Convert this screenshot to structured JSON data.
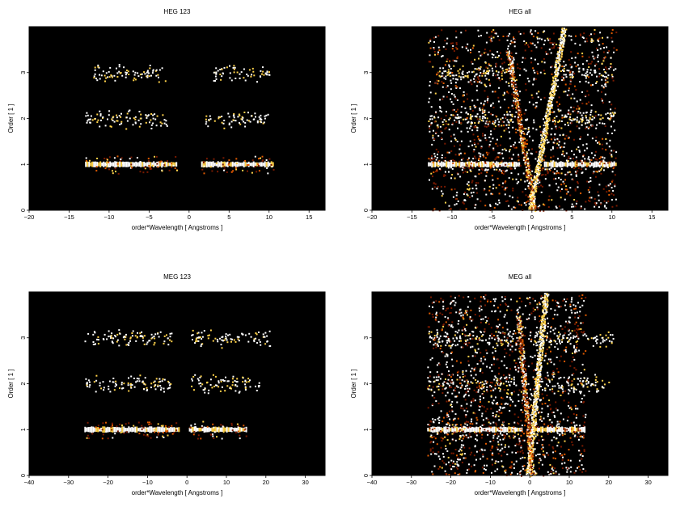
{
  "figure": {
    "background": "#ffffff",
    "plot_background": "#000000"
  },
  "chart_data": [
    {
      "type": "heatmap",
      "title": "HEG 123",
      "xlabel": "order*Wavelength [ Angstroms ]",
      "ylabel": "Order [ 1 ]",
      "xlim": [
        -20,
        17
      ],
      "ylim": [
        0,
        4
      ],
      "xticks": [
        -20,
        -15,
        -10,
        -5,
        0,
        5,
        10,
        15
      ],
      "yticks": [
        0,
        1,
        2,
        3
      ],
      "grid": false,
      "colormap": [
        "#000000",
        "#7a1a00",
        "#e05a00",
        "#ffd24a",
        "#ffffff"
      ],
      "bands": [
        {
          "order": 1,
          "x_ranges": [
            [
              -13,
              -1.5
            ],
            [
              1.5,
              10.5
            ]
          ],
          "intensity": "bright"
        },
        {
          "order": 2,
          "x_ranges": [
            [
              -13,
              -2.5
            ],
            [
              2,
              10
            ]
          ],
          "intensity": "sparse"
        },
        {
          "order": 3,
          "x_ranges": [
            [
              -12,
              -3
            ],
            [
              3,
              10
            ]
          ],
          "intensity": "sparse"
        }
      ],
      "streaks": []
    },
    {
      "type": "heatmap",
      "title": "HEG all",
      "xlabel": "order*Wavelength [ Angstroms ]",
      "ylabel": "Order [ 1 ]",
      "xlim": [
        -20,
        17
      ],
      "ylim": [
        0,
        4
      ],
      "xticks": [
        -20,
        -15,
        -10,
        -5,
        0,
        5,
        10,
        15
      ],
      "yticks": [
        0,
        1,
        2,
        3
      ],
      "grid": false,
      "colormap": [
        "#000000",
        "#7a1a00",
        "#e05a00",
        "#ffd24a",
        "#ffffff"
      ],
      "bands": [
        {
          "order": 1,
          "x_ranges": [
            [
              -13,
              -1.5
            ],
            [
              1.5,
              10.5
            ]
          ],
          "intensity": "bright"
        },
        {
          "order": 2,
          "x_ranges": [
            [
              -13,
              -2.5
            ],
            [
              2,
              10
            ]
          ],
          "intensity": "sparse"
        },
        {
          "order": 3,
          "x_ranges": [
            [
              -12,
              -3
            ],
            [
              3,
              10
            ]
          ],
          "intensity": "sparse"
        }
      ],
      "streaks": [
        {
          "x0": -0.3,
          "y0": 0,
          "x1": 4,
          "y1": 4,
          "intensity": "bright"
        },
        {
          "x0": 0.2,
          "y0": 0,
          "x1": -3,
          "y1": 3.5,
          "intensity": "medium"
        }
      ]
    },
    {
      "type": "heatmap",
      "title": "MEG 123",
      "xlabel": "order*Wavelength [ Angstroms ]",
      "ylabel": "Order [ 1 ]",
      "xlim": [
        -40,
        35
      ],
      "ylim": [
        0,
        4
      ],
      "xticks": [
        -40,
        -30,
        -20,
        -10,
        0,
        10,
        20,
        30
      ],
      "yticks": [
        0,
        1,
        2,
        3
      ],
      "grid": false,
      "colormap": [
        "#000000",
        "#7a1a00",
        "#e05a00",
        "#ffd24a",
        "#ffffff"
      ],
      "bands": [
        {
          "order": 1,
          "x_ranges": [
            [
              -26,
              -2
            ],
            [
              0.5,
              15
            ]
          ],
          "intensity": "bright"
        },
        {
          "order": 2,
          "x_ranges": [
            [
              -26,
              -4
            ],
            [
              1,
              20
            ]
          ],
          "intensity": "sparse"
        },
        {
          "order": 3,
          "x_ranges": [
            [
              -26,
              -4
            ],
            [
              1,
              21
            ]
          ],
          "intensity": "sparse"
        }
      ],
      "streaks": []
    },
    {
      "type": "heatmap",
      "title": "MEG all",
      "xlabel": "order*Wavelength [ Angstroms ]",
      "ylabel": "Order [ 1 ]",
      "xlim": [
        -40,
        35
      ],
      "ylim": [
        0,
        4
      ],
      "xticks": [
        -40,
        -30,
        -20,
        -10,
        0,
        10,
        20,
        30
      ],
      "yticks": [
        0,
        1,
        2,
        3
      ],
      "grid": false,
      "colormap": [
        "#000000",
        "#7a1a00",
        "#e05a00",
        "#ffd24a",
        "#ffffff"
      ],
      "bands": [
        {
          "order": 1,
          "x_ranges": [
            [
              -26,
              -2
            ],
            [
              1,
              14
            ]
          ],
          "intensity": "bright"
        },
        {
          "order": 2,
          "x_ranges": [
            [
              -26,
              -4
            ],
            [
              1,
              20
            ]
          ],
          "intensity": "sparse"
        },
        {
          "order": 3,
          "x_ranges": [
            [
              -26,
              -4
            ],
            [
              1,
              21
            ]
          ],
          "intensity": "sparse"
        }
      ],
      "streaks": [
        {
          "x0": -0.5,
          "y0": 0,
          "x1": 4,
          "y1": 4,
          "intensity": "bright"
        },
        {
          "x0": 0.5,
          "y0": 0,
          "x1": -3,
          "y1": 3.5,
          "intensity": "medium"
        }
      ]
    }
  ]
}
